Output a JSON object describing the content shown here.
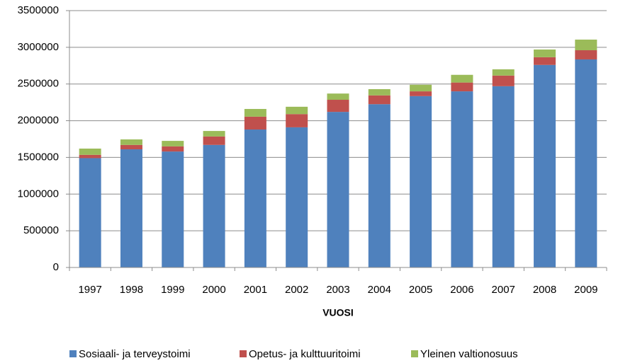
{
  "chart_data": {
    "type": "stacked_bar",
    "x_label": "VUOSI",
    "categories": [
      "1997",
      "1998",
      "1999",
      "2000",
      "2001",
      "2002",
      "2003",
      "2004",
      "2005",
      "2006",
      "2007",
      "2008",
      "2009"
    ],
    "series": [
      {
        "name": "Sosiaali- ja terveystoimi",
        "color": "#4f81bd",
        "values": [
          1490000,
          1610000,
          1580000,
          1670000,
          1880000,
          1910000,
          2120000,
          2225000,
          2335000,
          2400000,
          2470000,
          2760000,
          2835000
        ]
      },
      {
        "name": "Opetus- ja kulttuuritoimi",
        "color": "#c0504d",
        "values": [
          45000,
          60000,
          70000,
          115000,
          175000,
          180000,
          165000,
          120000,
          65000,
          120000,
          145000,
          105000,
          125000
        ]
      },
      {
        "name": "Yleinen valtionosuus",
        "color": "#9bbb59",
        "values": [
          85000,
          75000,
          75000,
          75000,
          105000,
          100000,
          85000,
          85000,
          90000,
          105000,
          85000,
          105000,
          145000
        ]
      }
    ],
    "ylim": [
      0,
      3500000
    ],
    "yticks": [
      0,
      500000,
      1000000,
      1500000,
      2000000,
      2500000,
      3000000,
      3500000
    ],
    "grid": true,
    "legend": "bottom"
  }
}
